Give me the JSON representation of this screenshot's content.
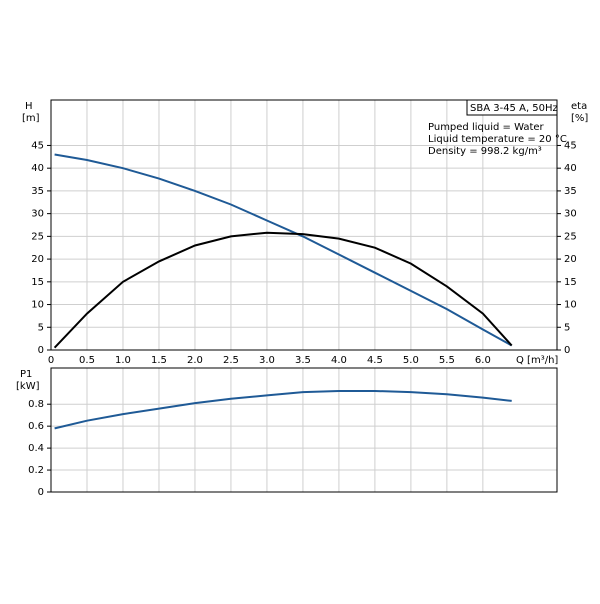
{
  "chart_data": [
    {
      "type": "line",
      "y_label": "H",
      "y_unit": "[m]",
      "y2_label": "eta",
      "y2_unit": "[%]",
      "x_label": "Q [m³/h]",
      "annotations": [
        "SBA 3-45 A, 50Hz",
        "Pumped liquid = Water",
        "Liquid temperature = 20 °C",
        "Density = 998.2 kg/m³"
      ],
      "x": [
        0.05,
        0.5,
        1.0,
        1.5,
        2.0,
        2.5,
        3.0,
        3.5,
        4.0,
        4.5,
        5.0,
        5.5,
        6.0,
        6.4
      ],
      "series": [
        {
          "color": "#1f5a96",
          "values": [
            43,
            41.8,
            40,
            37.7,
            35,
            32,
            28.5,
            25,
            21,
            17,
            13,
            9,
            4.5,
            1
          ]
        },
        {
          "color": "#000000",
          "axis": "y2",
          "values": [
            0.5,
            8,
            15,
            19.5,
            23,
            25,
            25.8,
            25.5,
            24.5,
            22.5,
            19,
            14,
            8,
            1
          ]
        }
      ],
      "xlim": [
        0,
        7.03
      ],
      "xticks": [
        0,
        0.5,
        {
          "value": 1,
          "label": "1.0"
        },
        1.5,
        {
          "value": 2,
          "label": "2.0"
        },
        2.5,
        {
          "value": 3,
          "label": "3.0"
        },
        3.5,
        {
          "value": 4,
          "label": "4.0"
        },
        4.5,
        {
          "value": 5,
          "label": "5.0"
        },
        5.5,
        {
          "value": 6,
          "label": "6.0"
        }
      ],
      "ylim": [
        0,
        55
      ],
      "yticks": [
        0,
        5,
        10,
        15,
        20,
        25,
        30,
        35,
        40,
        45
      ],
      "y2lim": [
        0,
        55
      ],
      "y2ticks": [
        0,
        5,
        10,
        15,
        20,
        25,
        30,
        35,
        40,
        45
      ],
      "grid": true
    },
    {
      "type": "line",
      "y_label": "P1",
      "y_unit": "[kW]",
      "series": [
        {
          "color": "#1f5a96",
          "values": [
            0.58,
            0.65,
            0.71,
            0.76,
            0.81,
            0.85,
            0.88,
            0.91,
            0.92,
            0.92,
            0.91,
            0.89,
            0.86,
            0.83
          ]
        }
      ],
      "ylim": [
        0,
        1.13
      ],
      "yticks": [
        0,
        0.2,
        0.4,
        0.6,
        0.8
      ],
      "grid": true
    }
  ]
}
